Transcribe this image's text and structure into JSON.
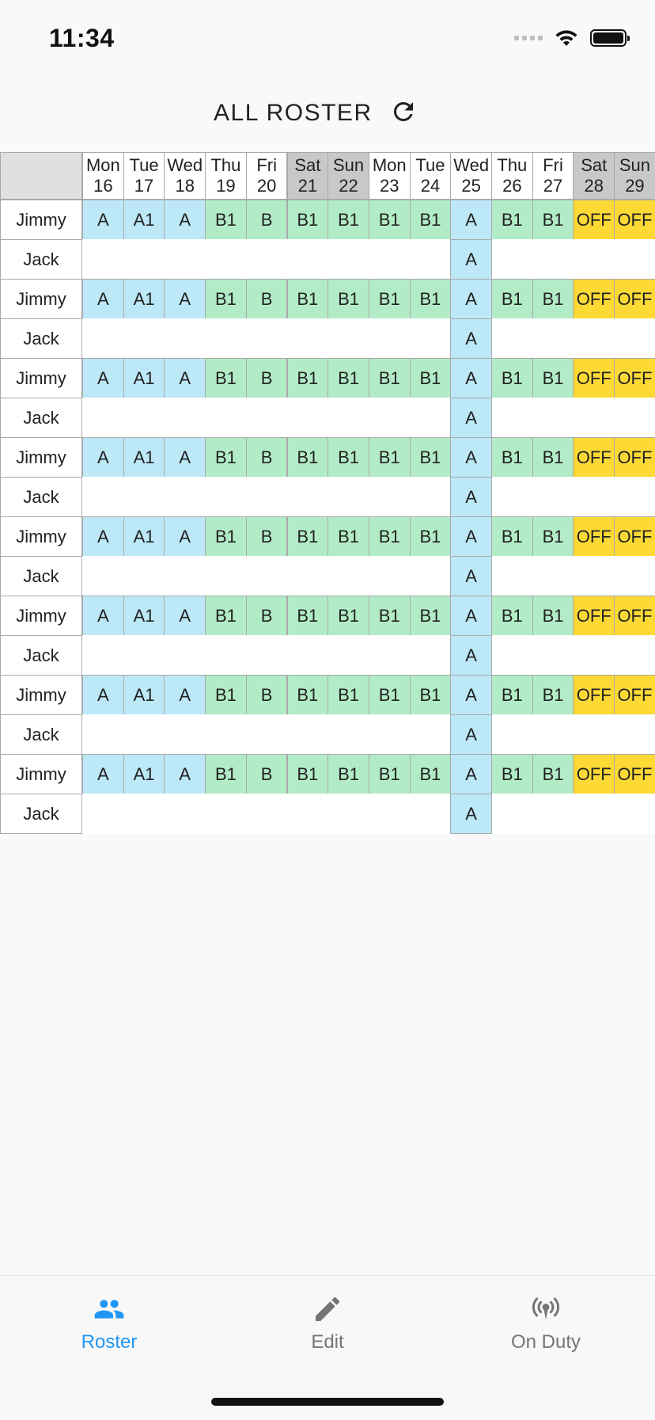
{
  "status_bar": {
    "time": "11:34"
  },
  "header": {
    "title": "ALL ROSTER"
  },
  "roster": {
    "days": [
      {
        "day": "Mon",
        "date": "16",
        "weekend": false
      },
      {
        "day": "Tue",
        "date": "17",
        "weekend": false
      },
      {
        "day": "Wed",
        "date": "18",
        "weekend": false
      },
      {
        "day": "Thu",
        "date": "19",
        "weekend": false
      },
      {
        "day": "Fri",
        "date": "20",
        "weekend": false
      },
      {
        "day": "Sat",
        "date": "21",
        "weekend": true
      },
      {
        "day": "Sun",
        "date": "22",
        "weekend": true
      },
      {
        "day": "Mon",
        "date": "23",
        "weekend": false
      },
      {
        "day": "Tue",
        "date": "24",
        "weekend": false
      },
      {
        "day": "Wed",
        "date": "25",
        "weekend": false
      },
      {
        "day": "Thu",
        "date": "26",
        "weekend": false
      },
      {
        "day": "Fri",
        "date": "27",
        "weekend": false
      },
      {
        "day": "Sat",
        "date": "28",
        "weekend": true
      },
      {
        "day": "Sun",
        "date": "29",
        "weekend": true
      }
    ],
    "rows": [
      {
        "name": "Jimmy",
        "shifts": [
          "A",
          "A1",
          "A",
          "B1",
          "B",
          "B1",
          "B1",
          "B1",
          "B1",
          "A",
          "B1",
          "B1",
          "OFF",
          "OFF"
        ]
      },
      {
        "name": "Jack",
        "shifts": [
          "",
          "",
          "",
          "",
          "",
          "",
          "",
          "",
          "",
          "A",
          "",
          "",
          "",
          ""
        ]
      },
      {
        "name": "Jimmy",
        "shifts": [
          "A",
          "A1",
          "A",
          "B1",
          "B",
          "B1",
          "B1",
          "B1",
          "B1",
          "A",
          "B1",
          "B1",
          "OFF",
          "OFF"
        ]
      },
      {
        "name": "Jack",
        "shifts": [
          "",
          "",
          "",
          "",
          "",
          "",
          "",
          "",
          "",
          "A",
          "",
          "",
          "",
          ""
        ]
      },
      {
        "name": "Jimmy",
        "shifts": [
          "A",
          "A1",
          "A",
          "B1",
          "B",
          "B1",
          "B1",
          "B1",
          "B1",
          "A",
          "B1",
          "B1",
          "OFF",
          "OFF"
        ]
      },
      {
        "name": "Jack",
        "shifts": [
          "",
          "",
          "",
          "",
          "",
          "",
          "",
          "",
          "",
          "A",
          "",
          "",
          "",
          ""
        ]
      },
      {
        "name": "Jimmy",
        "shifts": [
          "A",
          "A1",
          "A",
          "B1",
          "B",
          "B1",
          "B1",
          "B1",
          "B1",
          "A",
          "B1",
          "B1",
          "OFF",
          "OFF"
        ]
      },
      {
        "name": "Jack",
        "shifts": [
          "",
          "",
          "",
          "",
          "",
          "",
          "",
          "",
          "",
          "A",
          "",
          "",
          "",
          ""
        ]
      },
      {
        "name": "Jimmy",
        "shifts": [
          "A",
          "A1",
          "A",
          "B1",
          "B",
          "B1",
          "B1",
          "B1",
          "B1",
          "A",
          "B1",
          "B1",
          "OFF",
          "OFF"
        ]
      },
      {
        "name": "Jack",
        "shifts": [
          "",
          "",
          "",
          "",
          "",
          "",
          "",
          "",
          "",
          "A",
          "",
          "",
          "",
          ""
        ]
      },
      {
        "name": "Jimmy",
        "shifts": [
          "A",
          "A1",
          "A",
          "B1",
          "B",
          "B1",
          "B1",
          "B1",
          "B1",
          "A",
          "B1",
          "B1",
          "OFF",
          "OFF"
        ]
      },
      {
        "name": "Jack",
        "shifts": [
          "",
          "",
          "",
          "",
          "",
          "",
          "",
          "",
          "",
          "A",
          "",
          "",
          "",
          ""
        ]
      },
      {
        "name": "Jimmy",
        "shifts": [
          "A",
          "A1",
          "A",
          "B1",
          "B",
          "B1",
          "B1",
          "B1",
          "B1",
          "A",
          "B1",
          "B1",
          "OFF",
          "OFF"
        ]
      },
      {
        "name": "Jack",
        "shifts": [
          "",
          "",
          "",
          "",
          "",
          "",
          "",
          "",
          "",
          "A",
          "",
          "",
          "",
          ""
        ]
      },
      {
        "name": "Jimmy",
        "shifts": [
          "A",
          "A1",
          "A",
          "B1",
          "B",
          "B1",
          "B1",
          "B1",
          "B1",
          "A",
          "B1",
          "B1",
          "OFF",
          "OFF"
        ]
      },
      {
        "name": "Jack",
        "shifts": [
          "",
          "",
          "",
          "",
          "",
          "",
          "",
          "",
          "",
          "A",
          "",
          "",
          "",
          ""
        ]
      }
    ]
  },
  "colors": {
    "shift_a": "#bce8f7",
    "shift_b": "#b2ecc7",
    "shift_off": "#fcd935",
    "weekend_header": "#c8c8c8",
    "accent": "#2196f3"
  },
  "bottom_nav": {
    "tabs": [
      {
        "label": "Roster",
        "icon": "people-icon",
        "active": true
      },
      {
        "label": "Edit",
        "icon": "pencil-icon",
        "active": false
      },
      {
        "label": "On Duty",
        "icon": "broadcast-icon",
        "active": false
      }
    ]
  }
}
